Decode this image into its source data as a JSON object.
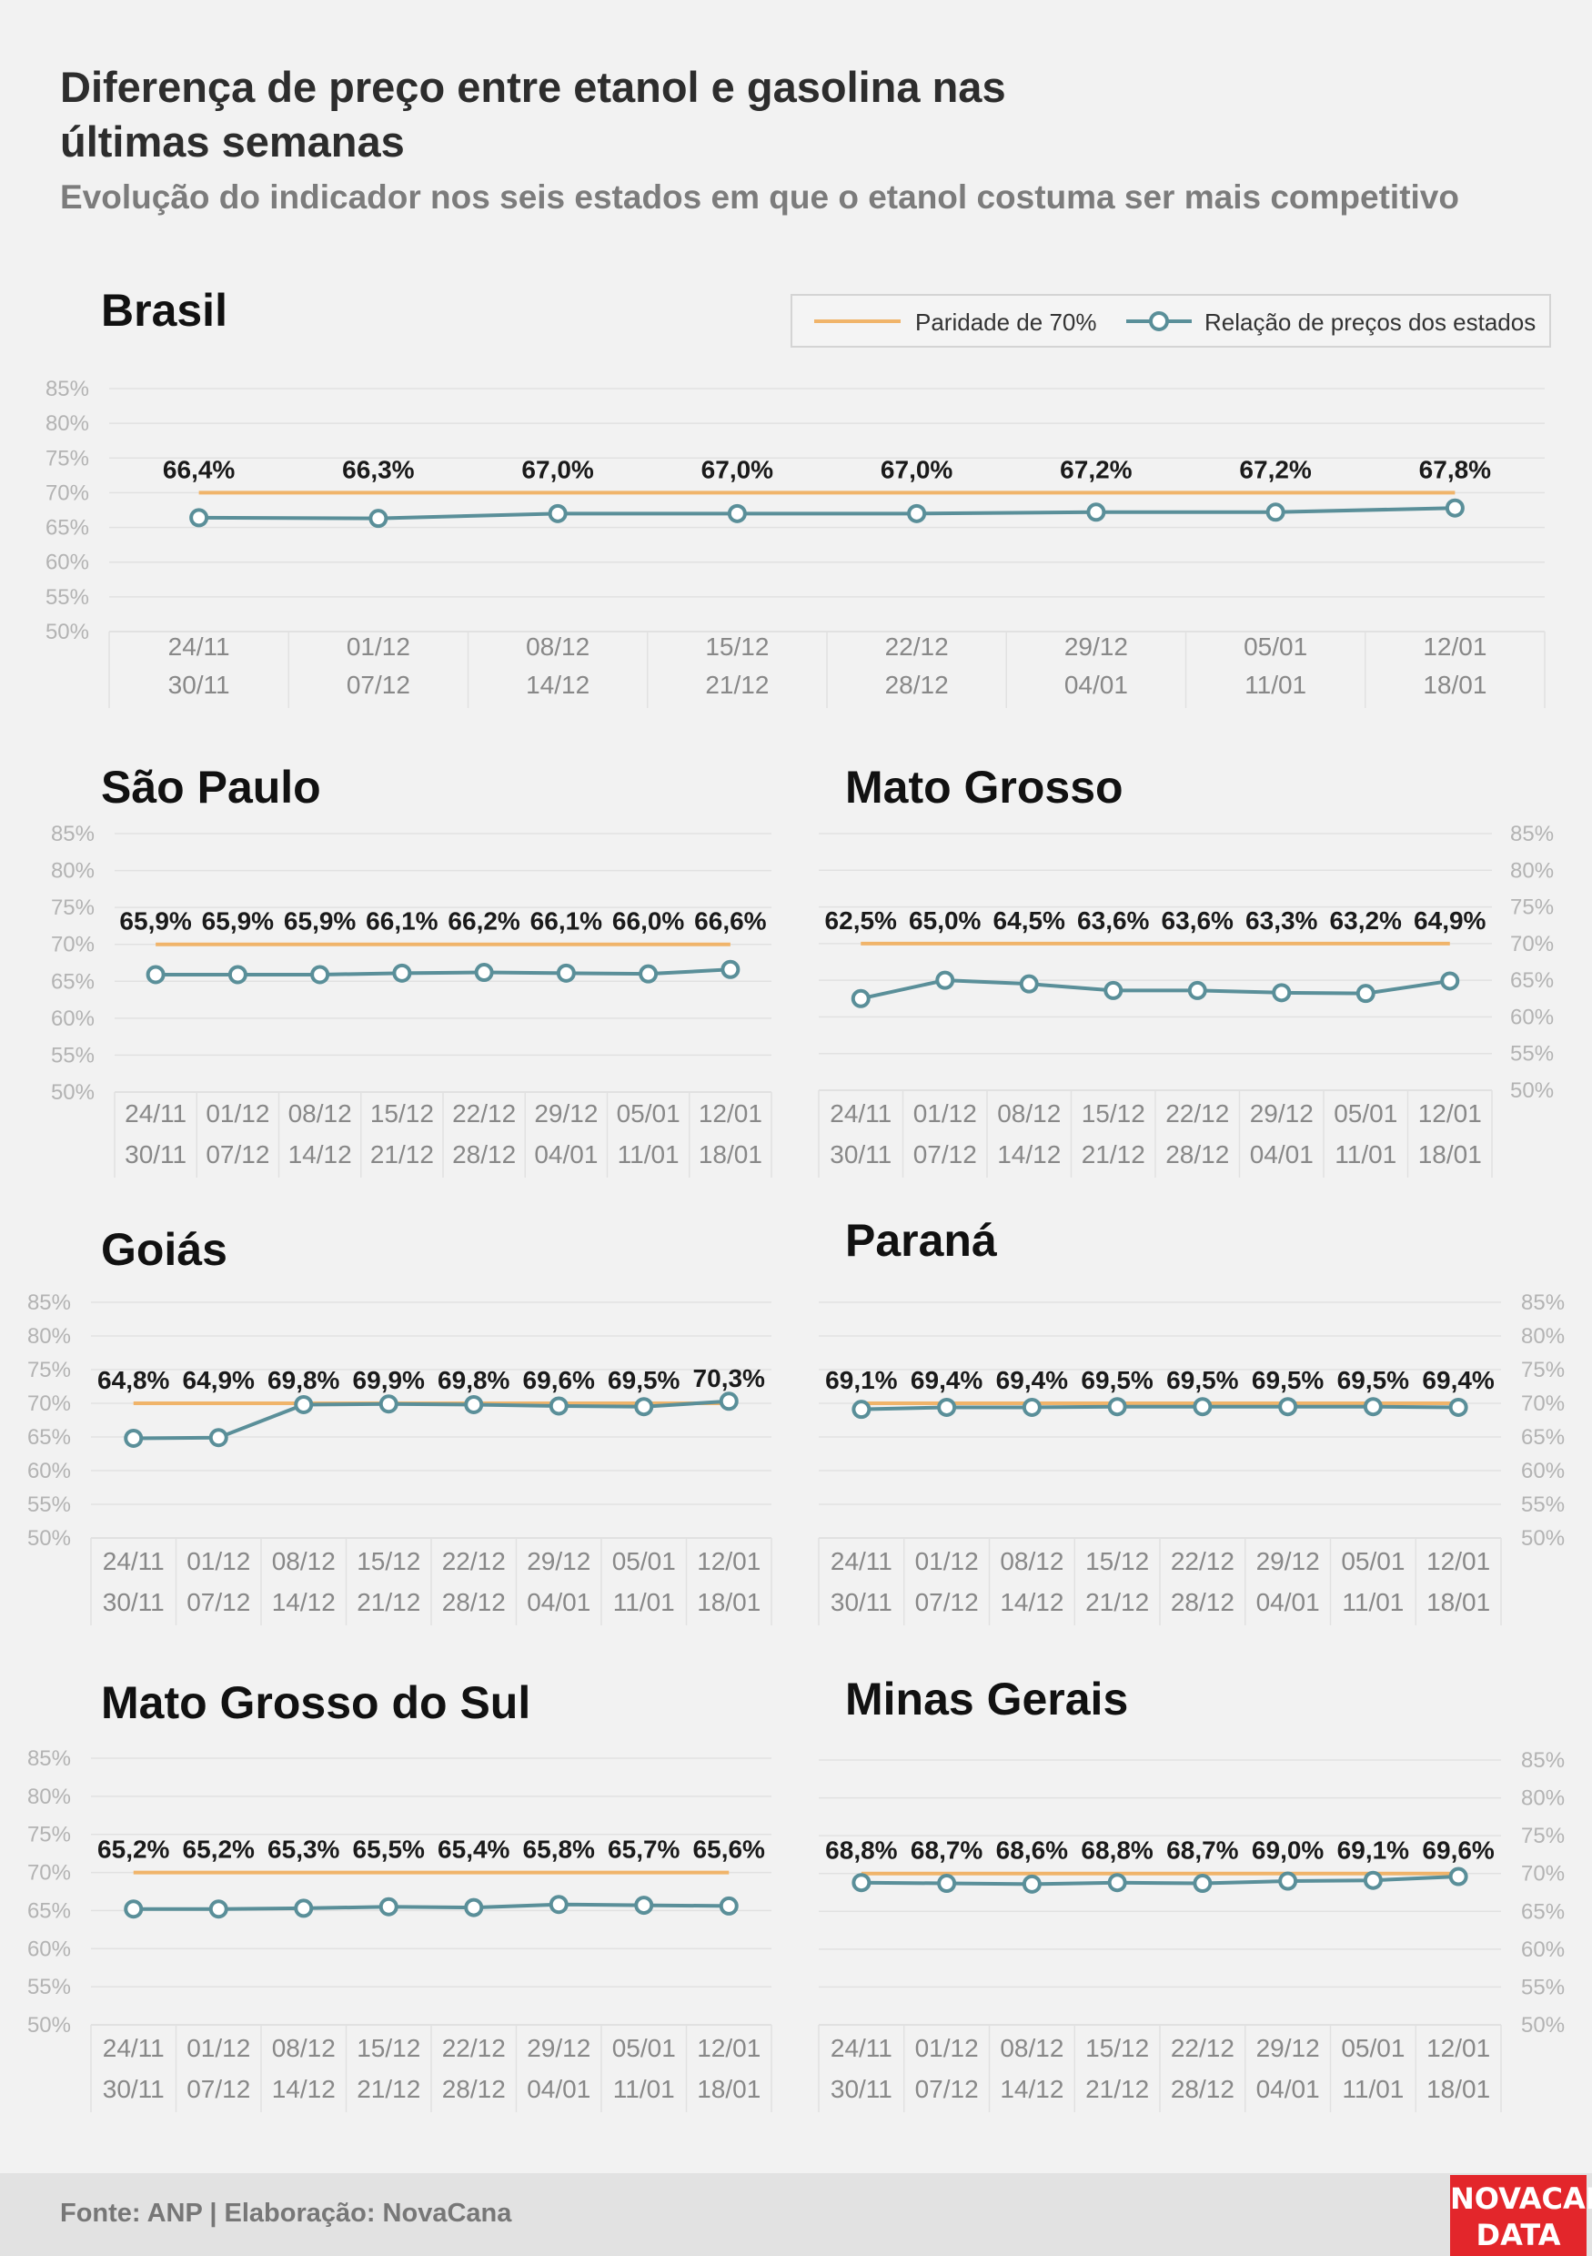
{
  "header": {
    "title": "Diferença de preço entre etanol e gasolina nas últimas semanas",
    "subtitle": "Evolução do indicador nos seis estados em que o etanol costuma ser mais competitivo"
  },
  "legend": {
    "parity": "Paridade de 70%",
    "ratio": "Relação de preços dos estados"
  },
  "footer": {
    "source": "Fonte: ANP | Elaboração: NovaCana",
    "logo_line1": "NOVACANA",
    "logo_line2": "DATA"
  },
  "colors": {
    "parity_line": "#f0b46a",
    "ratio_line": "#5a8f99",
    "grid": "#e1e1e1",
    "axis_label": "#b3b3b3",
    "logo": "#e3262b"
  },
  "chart_data": [
    {
      "type": "line",
      "title": "Brasil",
      "categories": [
        "24/11\n30/11",
        "01/12\n07/12",
        "08/12\n14/12",
        "15/12\n21/12",
        "22/12\n28/12",
        "29/12\n04/01",
        "05/01\n11/01",
        "12/01\n18/01"
      ],
      "y_ticks": [
        "85%",
        "80%",
        "75%",
        "70%",
        "65%",
        "60%",
        "55%",
        "50%"
      ],
      "ylim": [
        50,
        85
      ],
      "parity": 70,
      "values": [
        66.4,
        66.3,
        67.0,
        67.0,
        67.0,
        67.2,
        67.2,
        67.8
      ],
      "labels": [
        "66,4%",
        "66,3%",
        "67,0%",
        "67,0%",
        "67,0%",
        "67,2%",
        "67,2%",
        "67,8%"
      ],
      "grid": true,
      "legend_position": "top-right"
    },
    {
      "type": "line",
      "title": "São Paulo",
      "categories": [
        "24/11\n30/11",
        "01/12\n07/12",
        "08/12\n14/12",
        "15/12\n21/12",
        "22/12\n28/12",
        "29/12\n04/01",
        "05/01\n11/01",
        "12/01\n18/01"
      ],
      "y_ticks": [
        "85%",
        "80%",
        "75%",
        "70%",
        "65%",
        "60%",
        "55%",
        "50%"
      ],
      "ylim": [
        50,
        85
      ],
      "parity": 70,
      "values": [
        65.9,
        65.9,
        65.9,
        66.1,
        66.2,
        66.1,
        66.0,
        66.6
      ],
      "labels": [
        "65,9%",
        "65,9%",
        "65,9%",
        "66,1%",
        "66,2%",
        "66,1%",
        "66,0%",
        "66,6%"
      ],
      "grid": true
    },
    {
      "type": "line",
      "title": "Mato Grosso",
      "categories": [
        "24/11\n30/11",
        "01/12\n07/12",
        "08/12\n14/12",
        "15/12\n21/12",
        "22/12\n28/12",
        "29/12\n04/01",
        "05/01\n11/01",
        "12/01\n18/01"
      ],
      "y_ticks": [
        "85%",
        "80%",
        "75%",
        "70%",
        "65%",
        "60%",
        "55%",
        "50%"
      ],
      "ylim": [
        50,
        85
      ],
      "parity": 70,
      "values": [
        62.5,
        65.0,
        64.5,
        63.6,
        63.6,
        63.3,
        63.2,
        64.9
      ],
      "labels": [
        "62,5%",
        "65,0%",
        "64,5%",
        "63,6%",
        "63,6%",
        "63,3%",
        "63,2%",
        "64,9%"
      ],
      "grid": true
    },
    {
      "type": "line",
      "title": "Goiás",
      "categories": [
        "24/11\n30/11",
        "01/12\n07/12",
        "08/12\n14/12",
        "15/12\n21/12",
        "22/12\n28/12",
        "29/12\n04/01",
        "05/01\n11/01",
        "12/01\n18/01"
      ],
      "y_ticks": [
        "85%",
        "80%",
        "75%",
        "70%",
        "65%",
        "60%",
        "55%",
        "50%"
      ],
      "ylim": [
        50,
        85
      ],
      "parity": 70,
      "values": [
        64.8,
        64.9,
        69.8,
        69.9,
        69.8,
        69.6,
        69.5,
        70.3
      ],
      "labels": [
        "64,8%",
        "64,9%",
        "69,8%",
        "69,9%",
        "69,8%",
        "69,6%",
        "69,5%",
        "70,3%"
      ],
      "grid": true
    },
    {
      "type": "line",
      "title": "Paraná",
      "categories": [
        "24/11\n30/11",
        "01/12\n07/12",
        "08/12\n14/12",
        "15/12\n21/12",
        "22/12\n28/12",
        "29/12\n04/01",
        "05/01\n11/01",
        "12/01\n18/01"
      ],
      "y_ticks": [
        "85%",
        "80%",
        "75%",
        "70%",
        "65%",
        "60%",
        "55%",
        "50%"
      ],
      "ylim": [
        50,
        85
      ],
      "parity": 70,
      "values": [
        69.1,
        69.4,
        69.4,
        69.5,
        69.5,
        69.5,
        69.5,
        69.4
      ],
      "labels": [
        "69,1%",
        "69,4%",
        "69,4%",
        "69,5%",
        "69,5%",
        "69,5%",
        "69,5%",
        "69,4%"
      ],
      "grid": true
    },
    {
      "type": "line",
      "title": "Mato Grosso do Sul",
      "categories": [
        "24/11\n30/11",
        "01/12\n07/12",
        "08/12\n14/12",
        "15/12\n21/12",
        "22/12\n28/12",
        "29/12\n04/01",
        "05/01\n11/01",
        "12/01\n18/01"
      ],
      "y_ticks": [
        "85%",
        "80%",
        "75%",
        "70%",
        "65%",
        "60%",
        "55%",
        "50%"
      ],
      "ylim": [
        50,
        85
      ],
      "parity": 70,
      "values": [
        65.2,
        65.2,
        65.3,
        65.5,
        65.4,
        65.8,
        65.7,
        65.6
      ],
      "labels": [
        "65,2%",
        "65,2%",
        "65,3%",
        "65,5%",
        "65,4%",
        "65,8%",
        "65,7%",
        "65,6%"
      ],
      "grid": true
    },
    {
      "type": "line",
      "title": "Minas Gerais",
      "categories": [
        "24/11\n30/11",
        "01/12\n07/12",
        "08/12\n14/12",
        "15/12\n21/12",
        "22/12\n28/12",
        "29/12\n04/01",
        "05/01\n11/01",
        "12/01\n18/01"
      ],
      "y_ticks": [
        "85%",
        "80%",
        "75%",
        "70%",
        "65%",
        "60%",
        "55%",
        "50%"
      ],
      "ylim": [
        50,
        85
      ],
      "parity": 70,
      "values": [
        68.8,
        68.7,
        68.6,
        68.8,
        68.7,
        69.0,
        69.1,
        69.6
      ],
      "labels": [
        "68,8%",
        "68,7%",
        "68,6%",
        "68,8%",
        "68,7%",
        "69,0%",
        "69,1%",
        "69,6%"
      ],
      "grid": true
    }
  ]
}
